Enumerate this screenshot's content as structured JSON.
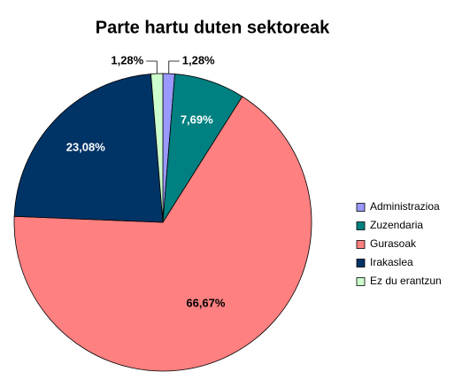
{
  "chart_data": {
    "type": "pie",
    "title": "Parte hartu duten sektoreak",
    "categories": [
      "Administrazioa",
      "Zuzendaria",
      "Gurasoak",
      "Irakaslea",
      "Ez du erantzun"
    ],
    "values": [
      1.28,
      7.69,
      66.67,
      23.08,
      1.28
    ],
    "value_labels": [
      "1,28%",
      "7,69%",
      "66,67%",
      "23,08%",
      "1,28%"
    ],
    "colors": [
      "#9999ff",
      "#008080",
      "#ff8080",
      "#003366",
      "#ccffcc"
    ],
    "legend": "right"
  }
}
